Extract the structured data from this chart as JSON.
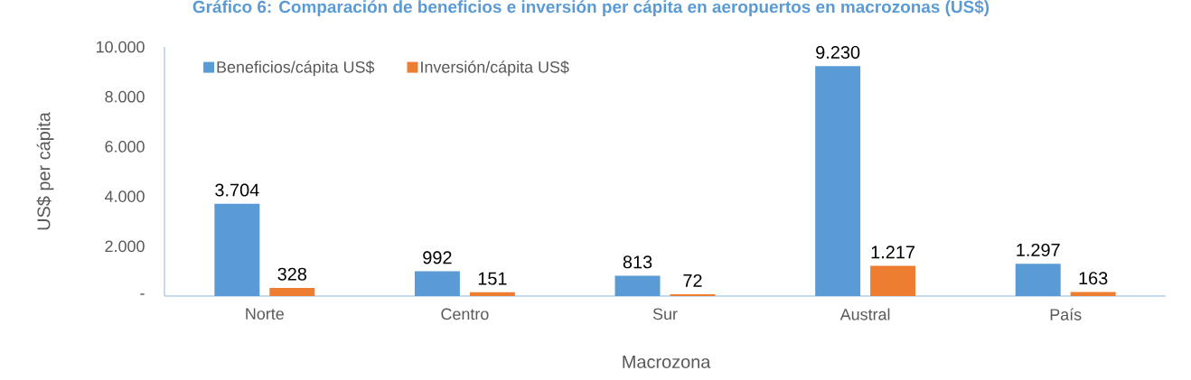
{
  "chart_data": {
    "type": "bar",
    "title": "Gráfico 6: Comparación de beneficios e inversión per cápita en aeropuertos en macrozonas (US$)",
    "xlabel": "Macrozona",
    "ylabel": "US$ per cápita",
    "categories": [
      "Norte",
      "Centro",
      "Sur",
      "Austral",
      "País"
    ],
    "series": [
      {
        "name": "Beneficios/cápita US$",
        "color": "#5b9bd5",
        "values": [
          3704,
          992,
          813,
          9230,
          1297
        ],
        "value_labels": [
          "3.704",
          "992",
          "813",
          "9.230",
          "1.297"
        ]
      },
      {
        "name": "Inversión/cápita US$",
        "color": "#ed7d31",
        "values": [
          328,
          151,
          72,
          1217,
          163
        ],
        "value_labels": [
          "328",
          "151",
          "72",
          "1.217",
          "163"
        ]
      }
    ],
    "ylim": [
      0,
      10000
    ],
    "yticks": [
      {
        "value": 0,
        "label": "-"
      },
      {
        "value": 2000,
        "label": "2.000"
      },
      {
        "value": 4000,
        "label": "4.000"
      },
      {
        "value": 6000,
        "label": "6.000"
      },
      {
        "value": 8000,
        "label": "8.000"
      },
      {
        "value": 10000,
        "label": "10.000"
      }
    ],
    "legend": "top left"
  }
}
